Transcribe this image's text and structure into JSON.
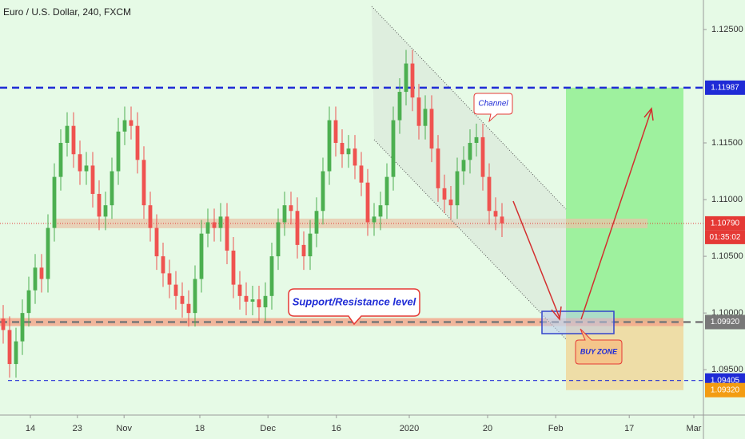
{
  "chart_data": {
    "type": "candlestick",
    "title": "Euro / U.S. Dollar, 240, FXCM",
    "x": [
      0,
      1,
      2,
      3,
      4,
      5,
      6,
      7,
      8,
      9,
      10,
      11,
      12,
      13,
      14,
      15,
      16,
      17,
      18,
      19,
      20,
      21,
      22,
      23,
      24,
      25,
      26,
      27,
      28,
      29,
      30,
      31,
      32,
      33,
      34,
      35,
      36,
      37,
      38,
      39,
      40,
      41,
      42,
      43,
      44,
      45,
      46,
      47,
      48,
      49,
      50,
      51,
      52,
      53,
      54,
      55,
      56,
      57,
      58,
      59,
      60,
      61,
      62,
      63,
      64,
      65,
      66,
      67,
      68,
      69,
      70,
      71,
      72,
      73,
      74,
      75,
      76,
      77,
      78
    ],
    "open": [
      1.0995,
      1.0985,
      1.0955,
      1.0975,
      1.1,
      1.102,
      1.104,
      1.103,
      1.1075,
      1.112,
      1.115,
      1.1165,
      1.114,
      1.1125,
      1.113,
      1.1105,
      1.1085,
      1.1095,
      1.1125,
      1.116,
      1.117,
      1.1165,
      1.1135,
      1.1095,
      1.1075,
      1.105,
      1.1035,
      1.1025,
      1.1015,
      1.1008,
      1.1,
      1.103,
      1.107,
      1.108,
      1.1075,
      1.1085,
      1.1055,
      1.1025,
      1.1015,
      1.101,
      1.1012,
      1.1005,
      1.1015,
      1.105,
      1.108,
      1.1095,
      1.109,
      1.106,
      1.105,
      1.107,
      1.109,
      1.1125,
      1.117,
      1.115,
      1.114,
      1.1145,
      1.113,
      1.1115,
      1.108,
      1.1085,
      1.1095,
      1.112,
      1.117,
      1.1195,
      1.122,
      1.119,
      1.1165,
      1.118,
      1.1145,
      1.111,
      1.11,
      1.1095,
      1.1125,
      1.1135,
      1.115,
      1.1155,
      1.112,
      1.109,
      1.1085
    ],
    "high": [
      1.1007,
      1.0997,
      1.0987,
      1.1012,
      1.1032,
      1.1052,
      1.1052,
      1.1087,
      1.1132,
      1.1162,
      1.1177,
      1.1177,
      1.1152,
      1.1142,
      1.1142,
      1.1117,
      1.1107,
      1.1137,
      1.1172,
      1.1182,
      1.1182,
      1.1177,
      1.1147,
      1.1107,
      1.1087,
      1.1062,
      1.1047,
      1.1037,
      1.1027,
      1.102,
      1.1042,
      1.1082,
      1.1092,
      1.1092,
      1.1097,
      1.1097,
      1.1067,
      1.1037,
      1.1027,
      1.1024,
      1.1024,
      1.1027,
      1.1062,
      1.1092,
      1.1107,
      1.1107,
      1.1102,
      1.1072,
      1.1082,
      1.1102,
      1.1137,
      1.1182,
      1.1182,
      1.1162,
      1.1157,
      1.1157,
      1.1142,
      1.1127,
      1.1097,
      1.1107,
      1.1132,
      1.1182,
      1.1207,
      1.1232,
      1.1232,
      1.1202,
      1.1192,
      1.1192,
      1.1157,
      1.1122,
      1.1112,
      1.1137,
      1.1147,
      1.1162,
      1.1167,
      1.1167,
      1.1132,
      1.1102,
      1.1097
    ],
    "low": [
      1.0973,
      1.0943,
      1.0943,
      1.0963,
      1.0988,
      1.1008,
      1.1018,
      1.1018,
      1.1063,
      1.1108,
      1.1138,
      1.1128,
      1.1113,
      1.1113,
      1.1093,
      1.1073,
      1.1073,
      1.1083,
      1.1113,
      1.1148,
      1.1153,
      1.1123,
      1.1083,
      1.1063,
      1.1038,
      1.1023,
      1.1013,
      1.1003,
      1.0996,
      1.0988,
      1.0988,
      1.1018,
      1.1058,
      1.1063,
      1.1063,
      1.1043,
      1.1013,
      1.1003,
      1.0998,
      1.0998,
      1.0993,
      1.0993,
      1.1003,
      1.1038,
      1.1068,
      1.1078,
      1.1048,
      1.1038,
      1.1038,
      1.1058,
      1.1078,
      1.1113,
      1.1138,
      1.1128,
      1.1128,
      1.1118,
      1.1103,
      1.1068,
      1.1068,
      1.1073,
      1.1083,
      1.1108,
      1.1158,
      1.1183,
      1.1178,
      1.1153,
      1.1153,
      1.1133,
      1.1098,
      1.1088,
      1.1083,
      1.1083,
      1.1113,
      1.1123,
      1.1138,
      1.1108,
      1.1078,
      1.1073,
      1.1067
    ],
    "close": [
      1.0985,
      1.0955,
      1.0975,
      1.1,
      1.102,
      1.104,
      1.103,
      1.1075,
      1.112,
      1.115,
      1.1165,
      1.114,
      1.1125,
      1.113,
      1.1105,
      1.1085,
      1.1095,
      1.1125,
      1.116,
      1.117,
      1.1165,
      1.1135,
      1.1095,
      1.1075,
      1.105,
      1.1035,
      1.1025,
      1.1015,
      1.1008,
      1.1,
      1.103,
      1.107,
      1.108,
      1.1075,
      1.1085,
      1.1055,
      1.1025,
      1.1015,
      1.101,
      1.1012,
      1.1005,
      1.1015,
      1.105,
      1.108,
      1.1095,
      1.109,
      1.106,
      1.105,
      1.107,
      1.109,
      1.1125,
      1.117,
      1.115,
      1.114,
      1.1145,
      1.113,
      1.1115,
      1.108,
      1.1085,
      1.1095,
      1.112,
      1.117,
      1.1195,
      1.122,
      1.119,
      1.1165,
      1.118,
      1.1145,
      1.111,
      1.11,
      1.1095,
      1.1125,
      1.1135,
      1.115,
      1.1155,
      1.112,
      1.109,
      1.1085,
      1.1079
    ],
    "up_color": "#4caf50",
    "down_color": "#ef5350",
    "xlim": [
      -0.5,
      109.5
    ],
    "xticks": [
      {
        "value": 4.25,
        "label": "14"
      },
      {
        "value": 11.6,
        "label": "23"
      },
      {
        "value": 18.9,
        "label": "Nov"
      },
      {
        "value": 30.75,
        "label": "18"
      },
      {
        "value": 41.4,
        "label": "Dec"
      },
      {
        "value": 52.1,
        "label": "16"
      },
      {
        "value": 63.5,
        "label": "2020"
      },
      {
        "value": 75.75,
        "label": "20"
      },
      {
        "value": 86.4,
        "label": "Feb"
      },
      {
        "value": 97.9,
        "label": "17"
      },
      {
        "value": 108,
        "label": "Mar"
      }
    ],
    "ylim": [
      1.091,
      1.1276
    ],
    "yticks": [
      {
        "value": 1.125,
        "label": "1.12500"
      },
      {
        "value": 1.115,
        "label": "1.11500"
      },
      {
        "value": 1.11,
        "label": "1.11000"
      },
      {
        "value": 1.105,
        "label": "1.10500"
      },
      {
        "value": 1.1,
        "label": "1.10000"
      },
      {
        "value": 1.095,
        "label": "1.09500"
      }
    ],
    "price_markers": [
      {
        "value": 1.11987,
        "label": "1.11987",
        "color": "#1f2bd6",
        "line": "dashed-thick"
      },
      {
        "value": 1.1079,
        "label": "1.10790",
        "color": "#e53935",
        "line": "dotted"
      },
      {
        "value": 1.0992,
        "label": "1.09920",
        "color": "#787878",
        "line": "dashed-thick"
      },
      {
        "value": 1.09405,
        "label": "1.09405",
        "color": "#1f2bd6",
        "line": "dashed"
      },
      {
        "value": 1.0932,
        "label": "1.09320",
        "color": "#f39c12",
        "line": "none"
      }
    ],
    "countdown": "01:35:02",
    "annotations": {
      "channel": "Channel",
      "level": "Support/Resistance level",
      "buy_zone": "BUY ZONE"
    }
  }
}
